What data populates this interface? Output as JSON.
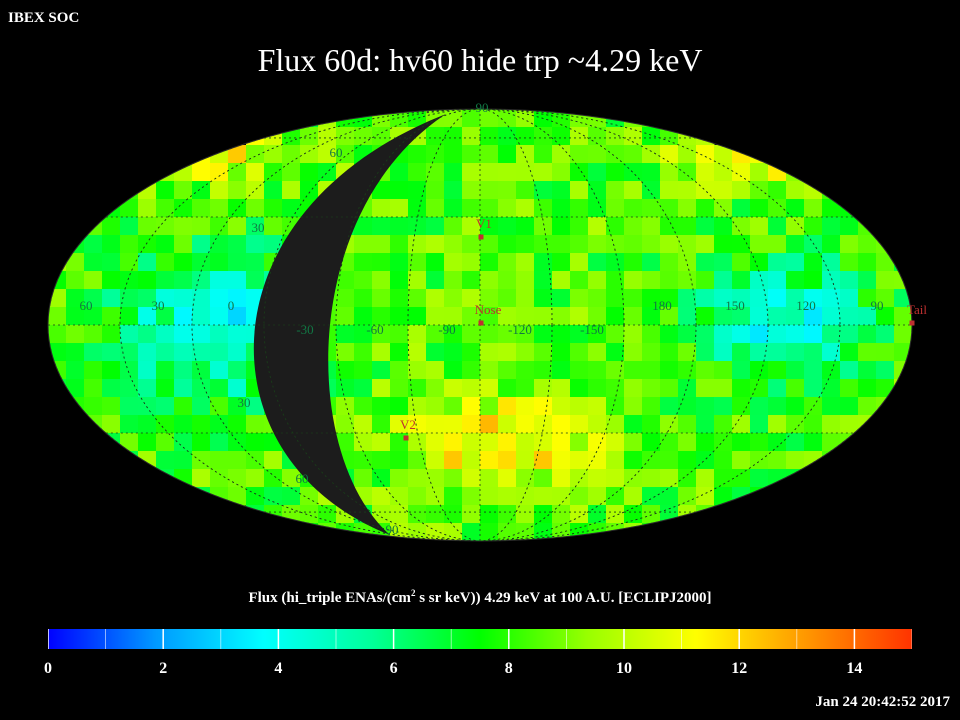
{
  "corner_label": "IBEX SOC",
  "title": "Flux   60d: hv60 hide trp ~4.29 keV",
  "caption_prefix": "Flux (hi_triple ENAs/(cm",
  "caption_sup": "2",
  "caption_suffix": " s sr keV))  4.29 keV at 100 A.U. [ECLIPJ2000]",
  "timestamp": "Jan 24 20:42:52 2017",
  "colorbar": {
    "range": [
      0,
      15
    ],
    "ticks": [
      "0",
      "2",
      "4",
      "6",
      "8",
      "10",
      "12",
      "14"
    ],
    "tick_values": [
      0,
      2,
      4,
      6,
      8,
      10,
      12,
      14
    ],
    "colors": [
      "#0000ff",
      "#0099ff",
      "#00ffff",
      "#00ff99",
      "#00ff00",
      "#99ff00",
      "#ffff00",
      "#ff9900",
      "#ff3300"
    ]
  },
  "map": {
    "projection": "Mollweide (ecliptic)",
    "longitude_labels": [
      "60",
      "30",
      "0",
      "-30",
      "-60",
      "-90",
      "-120",
      "-150",
      "180",
      "150",
      "120",
      "90"
    ],
    "longitude_values": [
      60,
      30,
      0,
      -30,
      -60,
      -90,
      -120,
      -150,
      180,
      150,
      120,
      90
    ],
    "latitude_labels": [
      "90",
      "60",
      "30",
      "30",
      "60",
      "90"
    ],
    "markers": [
      {
        "label": "V1",
        "lon": 255,
        "lat": 35
      },
      {
        "label": "Nose",
        "lon": 255,
        "lat": 5
      },
      {
        "label": "V2",
        "lon": 289,
        "lat": -32
      },
      {
        "label": "Tail",
        "lon": 75,
        "lat": 3
      }
    ],
    "marker_color": "#c03030"
  }
}
